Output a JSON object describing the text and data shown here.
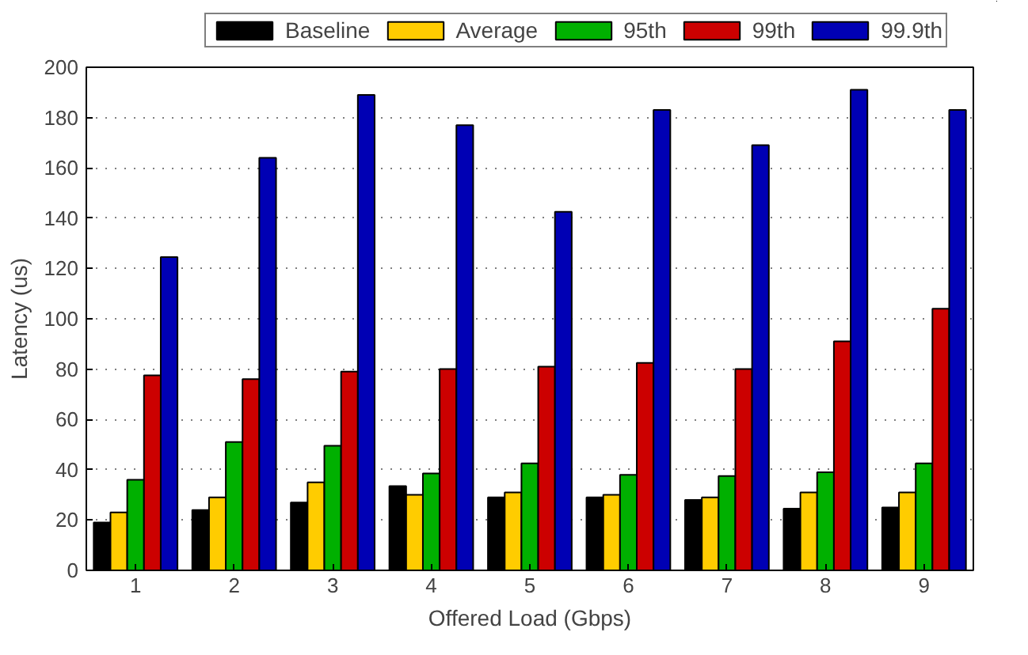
{
  "chart_data": {
    "type": "bar",
    "xlabel": "Offered Load (Gbps)",
    "ylabel": "Latency (us)",
    "categories": [
      "1",
      "2",
      "3",
      "4",
      "5",
      "6",
      "7",
      "8",
      "9"
    ],
    "series": [
      {
        "name": "Baseline",
        "color": "#000000",
        "values": [
          19,
          24,
          27,
          33.5,
          29,
          29,
          28,
          24.5,
          25
        ]
      },
      {
        "name": "Average",
        "color": "#ffcc00",
        "values": [
          23,
          29,
          35,
          30,
          31,
          30,
          29,
          31,
          31
        ]
      },
      {
        "name": "95th",
        "color": "#00b000",
        "values": [
          36,
          51,
          49.5,
          38.5,
          42.5,
          38,
          37.5,
          39,
          42.5
        ]
      },
      {
        "name": "99th",
        "color": "#cc0000",
        "values": [
          77.5,
          76,
          79,
          80,
          81,
          82.5,
          80,
          91,
          104
        ]
      },
      {
        "name": "99.9th",
        "color": "#0000b4",
        "values": [
          124.5,
          164,
          189,
          177,
          142.5,
          183,
          169,
          191,
          183
        ]
      }
    ],
    "ylim": [
      0,
      200
    ],
    "yticks": [
      0,
      20,
      40,
      60,
      80,
      100,
      120,
      140,
      160,
      180,
      200
    ],
    "grid": "y",
    "legend": "top"
  }
}
